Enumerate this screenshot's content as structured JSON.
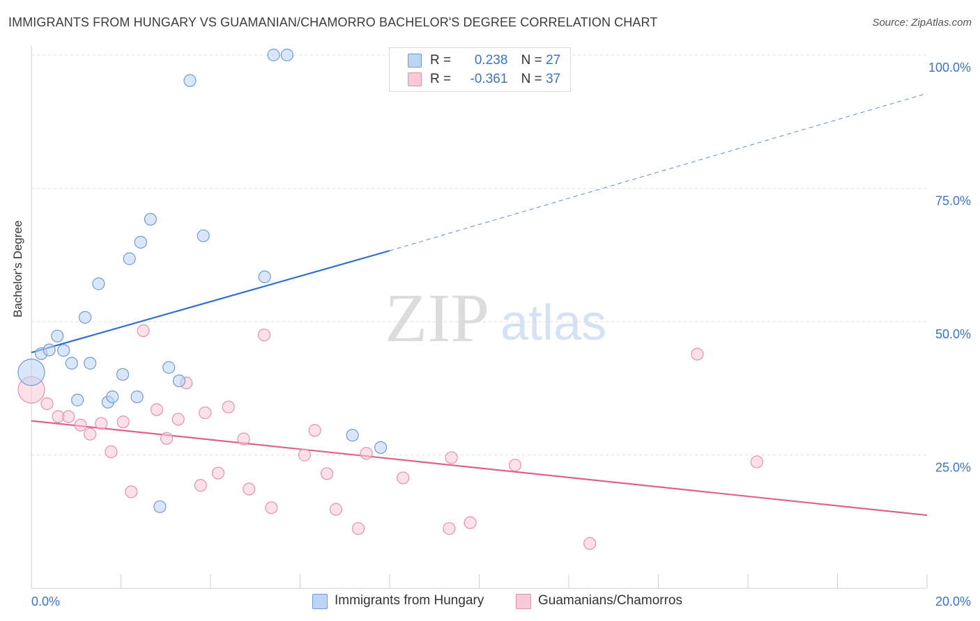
{
  "title": "IMMIGRANTS FROM HUNGARY VS GUAMANIAN/CHAMORRO BACHELOR'S DEGREE CORRELATION CHART",
  "source": "Source: ZipAtlas.com",
  "watermark": {
    "zip": "ZIP",
    "atlas": "atlas"
  },
  "legend": {
    "r_label": "R =",
    "n_label": "N =",
    "rows": [
      {
        "r": "0.238",
        "n": "27"
      },
      {
        "r": "-0.361",
        "n": "37"
      }
    ]
  },
  "colors": {
    "blue_fill": "#bcd4f5",
    "blue_stroke": "#6f9bd6",
    "blue_line": "#2e6fd0",
    "pink_fill": "#f9c9d7",
    "pink_stroke": "#e690ad",
    "pink_line": "#e0608c",
    "axis_text": "#3b73c6",
    "grid": "#dddddd"
  },
  "chart_data": {
    "type": "scatter",
    "title": "IMMIGRANTS FROM HUNGARY VS GUAMANIAN/CHAMORRO BACHELOR'S DEGREE CORRELATION CHART",
    "xlabel": "",
    "ylabel": "Bachelor's Degree",
    "xlim": [
      0,
      20
    ],
    "ylim": [
      0,
      100
    ],
    "x_tick_labels": [
      "0.0%",
      "20.0%"
    ],
    "y_tick_labels": [
      "25.0%",
      "50.0%",
      "75.0%",
      "100.0%"
    ],
    "y_ticks": [
      25,
      50,
      75,
      100
    ],
    "x_minor_ticks": [
      0,
      2,
      4,
      6,
      8,
      10,
      12,
      14,
      16,
      18,
      20
    ],
    "grid": true,
    "legend_position": "bottom",
    "series": [
      {
        "name": "Immigrants from Hungary",
        "color": "blue",
        "trend": {
          "x0": 0,
          "y0": 44.2,
          "x1": 8.0,
          "y1": 63.3,
          "dashed_to_x": 20,
          "dashed_to_y": 92.8
        },
        "points": [
          {
            "x": 0.0,
            "y": 40.5,
            "big": true
          },
          {
            "x": 0.22,
            "y": 44.0
          },
          {
            "x": 0.4,
            "y": 44.7
          },
          {
            "x": 0.58,
            "y": 47.3
          },
          {
            "x": 0.72,
            "y": 44.6
          },
          {
            "x": 0.9,
            "y": 42.2
          },
          {
            "x": 1.03,
            "y": 35.3
          },
          {
            "x": 1.2,
            "y": 50.8
          },
          {
            "x": 1.31,
            "y": 42.2
          },
          {
            "x": 1.5,
            "y": 57.1
          },
          {
            "x": 1.71,
            "y": 34.9
          },
          {
            "x": 1.81,
            "y": 35.9
          },
          {
            "x": 2.04,
            "y": 40.1
          },
          {
            "x": 2.19,
            "y": 61.8
          },
          {
            "x": 2.36,
            "y": 35.9
          },
          {
            "x": 2.44,
            "y": 64.9
          },
          {
            "x": 2.66,
            "y": 69.2
          },
          {
            "x": 2.87,
            "y": 15.3
          },
          {
            "x": 3.07,
            "y": 41.4
          },
          {
            "x": 3.3,
            "y": 38.9
          },
          {
            "x": 3.54,
            "y": 95.2
          },
          {
            "x": 3.84,
            "y": 66.1
          },
          {
            "x": 5.21,
            "y": 58.4
          },
          {
            "x": 5.41,
            "y": 100.0
          },
          {
            "x": 5.71,
            "y": 100.0
          },
          {
            "x": 7.17,
            "y": 28.7
          },
          {
            "x": 7.8,
            "y": 26.4
          }
        ]
      },
      {
        "name": "Guamanians/Chamorros",
        "color": "pink",
        "trend": {
          "x0": 0,
          "y0": 31.4,
          "x1": 20,
          "y1": 13.7
        },
        "points": [
          {
            "x": 0.0,
            "y": 37.2,
            "big": true
          },
          {
            "x": 0.35,
            "y": 34.6
          },
          {
            "x": 0.6,
            "y": 32.2
          },
          {
            "x": 0.83,
            "y": 32.2
          },
          {
            "x": 1.1,
            "y": 30.6
          },
          {
            "x": 1.31,
            "y": 28.9
          },
          {
            "x": 1.56,
            "y": 30.9
          },
          {
            "x": 1.78,
            "y": 25.6
          },
          {
            "x": 2.05,
            "y": 31.2
          },
          {
            "x": 2.23,
            "y": 18.1
          },
          {
            "x": 2.5,
            "y": 48.3
          },
          {
            "x": 2.8,
            "y": 33.5
          },
          {
            "x": 3.02,
            "y": 28.1
          },
          {
            "x": 3.28,
            "y": 31.7
          },
          {
            "x": 3.46,
            "y": 38.5
          },
          {
            "x": 3.78,
            "y": 19.3
          },
          {
            "x": 3.88,
            "y": 32.9
          },
          {
            "x": 4.17,
            "y": 21.6
          },
          {
            "x": 4.4,
            "y": 34.0
          },
          {
            "x": 4.74,
            "y": 28.0
          },
          {
            "x": 4.86,
            "y": 18.6
          },
          {
            "x": 5.2,
            "y": 47.5
          },
          {
            "x": 5.36,
            "y": 15.1
          },
          {
            "x": 6.1,
            "y": 25.0
          },
          {
            "x": 6.33,
            "y": 29.6
          },
          {
            "x": 6.6,
            "y": 21.5
          },
          {
            "x": 6.8,
            "y": 14.8
          },
          {
            "x": 7.3,
            "y": 11.2
          },
          {
            "x": 7.48,
            "y": 25.3
          },
          {
            "x": 8.3,
            "y": 20.7
          },
          {
            "x": 9.33,
            "y": 11.2
          },
          {
            "x": 9.38,
            "y": 24.5
          },
          {
            "x": 9.8,
            "y": 12.3
          },
          {
            "x": 10.8,
            "y": 23.1
          },
          {
            "x": 12.47,
            "y": 8.4
          },
          {
            "x": 14.87,
            "y": 43.9
          },
          {
            "x": 16.2,
            "y": 23.7
          }
        ]
      }
    ]
  }
}
